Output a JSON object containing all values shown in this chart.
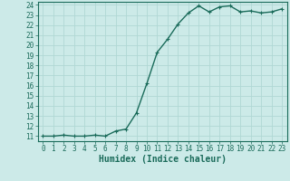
{
  "x": [
    0,
    1,
    2,
    3,
    4,
    5,
    6,
    7,
    8,
    9,
    10,
    11,
    12,
    13,
    14,
    15,
    16,
    17,
    18,
    19,
    20,
    21,
    22,
    23
  ],
  "y": [
    11.0,
    11.0,
    11.1,
    11.0,
    11.0,
    11.1,
    11.0,
    11.5,
    11.7,
    13.3,
    16.2,
    19.3,
    20.6,
    22.1,
    23.2,
    23.9,
    23.3,
    23.8,
    23.9,
    23.3,
    23.4,
    23.2,
    23.3,
    23.6
  ],
  "line_color": "#1a6b5a",
  "marker": "+",
  "marker_size": 3,
  "bg_color": "#cceae8",
  "grid_color": "#b0d8d4",
  "xlabel": "Humidex (Indice chaleur)",
  "ylim_min": 11,
  "ylim_max": 24,
  "xlim_min": 0,
  "xlim_max": 23,
  "yticks": [
    11,
    12,
    13,
    14,
    15,
    16,
    17,
    18,
    19,
    20,
    21,
    22,
    23,
    24
  ],
  "xticks": [
    0,
    1,
    2,
    3,
    4,
    5,
    6,
    7,
    8,
    9,
    10,
    11,
    12,
    13,
    14,
    15,
    16,
    17,
    18,
    19,
    20,
    21,
    22,
    23
  ],
  "tick_fontsize": 5.5,
  "xlabel_fontsize": 7,
  "line_width": 1.0,
  "marker_edge_width": 0.8
}
